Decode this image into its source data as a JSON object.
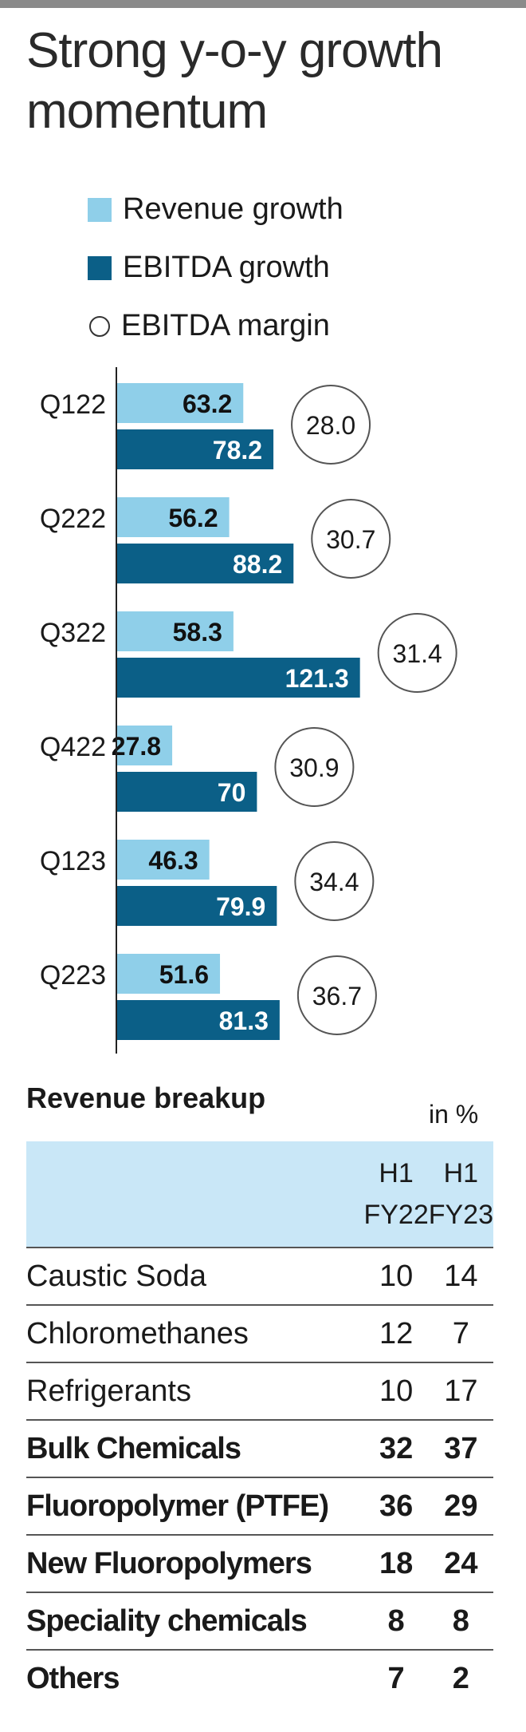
{
  "title": "Strong y-o-y growth momentum",
  "legend": {
    "revenue": "Revenue growth",
    "ebitda": "EBITDA growth",
    "margin": "EBITDA margin"
  },
  "colors": {
    "revenue": "#8fcfe9",
    "ebitda": "#0b5f87",
    "topbar": "#8a8a8a",
    "table_header": "#c9e7f7"
  },
  "chart_data": {
    "type": "bar",
    "orientation": "horizontal",
    "categories": [
      "Q122",
      "Q222",
      "Q322",
      "Q422",
      "Q123",
      "Q223"
    ],
    "series": [
      {
        "name": "Revenue growth",
        "values": [
          63.2,
          56.2,
          58.3,
          27.8,
          46.3,
          51.6
        ]
      },
      {
        "name": "EBITDA growth",
        "values": [
          78.2,
          88.2,
          121.3,
          70,
          79.9,
          81.3
        ]
      },
      {
        "name": "EBITDA margin",
        "values": [
          28.0,
          30.7,
          31.4,
          30.9,
          34.4,
          36.7
        ]
      }
    ],
    "labels": {
      "revenue": [
        "63.2",
        "56.2",
        "58.3",
        "27.8",
        "46.3",
        "51.6"
      ],
      "ebitda": [
        "78.2",
        "88.2",
        "121.3",
        "70",
        "79.9",
        "81.3"
      ],
      "margin": [
        "28.0",
        "30.7",
        "31.4",
        "30.9",
        "34.4",
        "36.7"
      ]
    }
  },
  "revenue_breakup": {
    "title": "Revenue breakup",
    "unit": "in %",
    "headers": [
      "H1 FY22",
      "H1 FY23"
    ],
    "header_lines": [
      [
        "H1",
        "FY22"
      ],
      [
        "H1",
        "FY23"
      ]
    ],
    "rows": [
      {
        "name": "Caustic Soda",
        "fy22": "10",
        "fy23": "14",
        "bold": false
      },
      {
        "name": "Chloromethanes",
        "fy22": "12",
        "fy23": "7",
        "bold": false
      },
      {
        "name": "Refrigerants",
        "fy22": "10",
        "fy23": "17",
        "bold": false
      },
      {
        "name": "Bulk Chemicals",
        "fy22": "32",
        "fy23": "37",
        "bold": true
      },
      {
        "name": "Fluoropolymer (PTFE)",
        "fy22": "36",
        "fy23": "29",
        "bold": true
      },
      {
        "name": "New Fluoropolymers",
        "fy22": "18",
        "fy23": "24",
        "bold": true
      },
      {
        "name": "Speciality chemicals",
        "fy22": "8",
        "fy23": "8",
        "bold": true
      },
      {
        "name": "Others",
        "fy22": "7",
        "fy23": "2",
        "bold": true
      }
    ]
  }
}
